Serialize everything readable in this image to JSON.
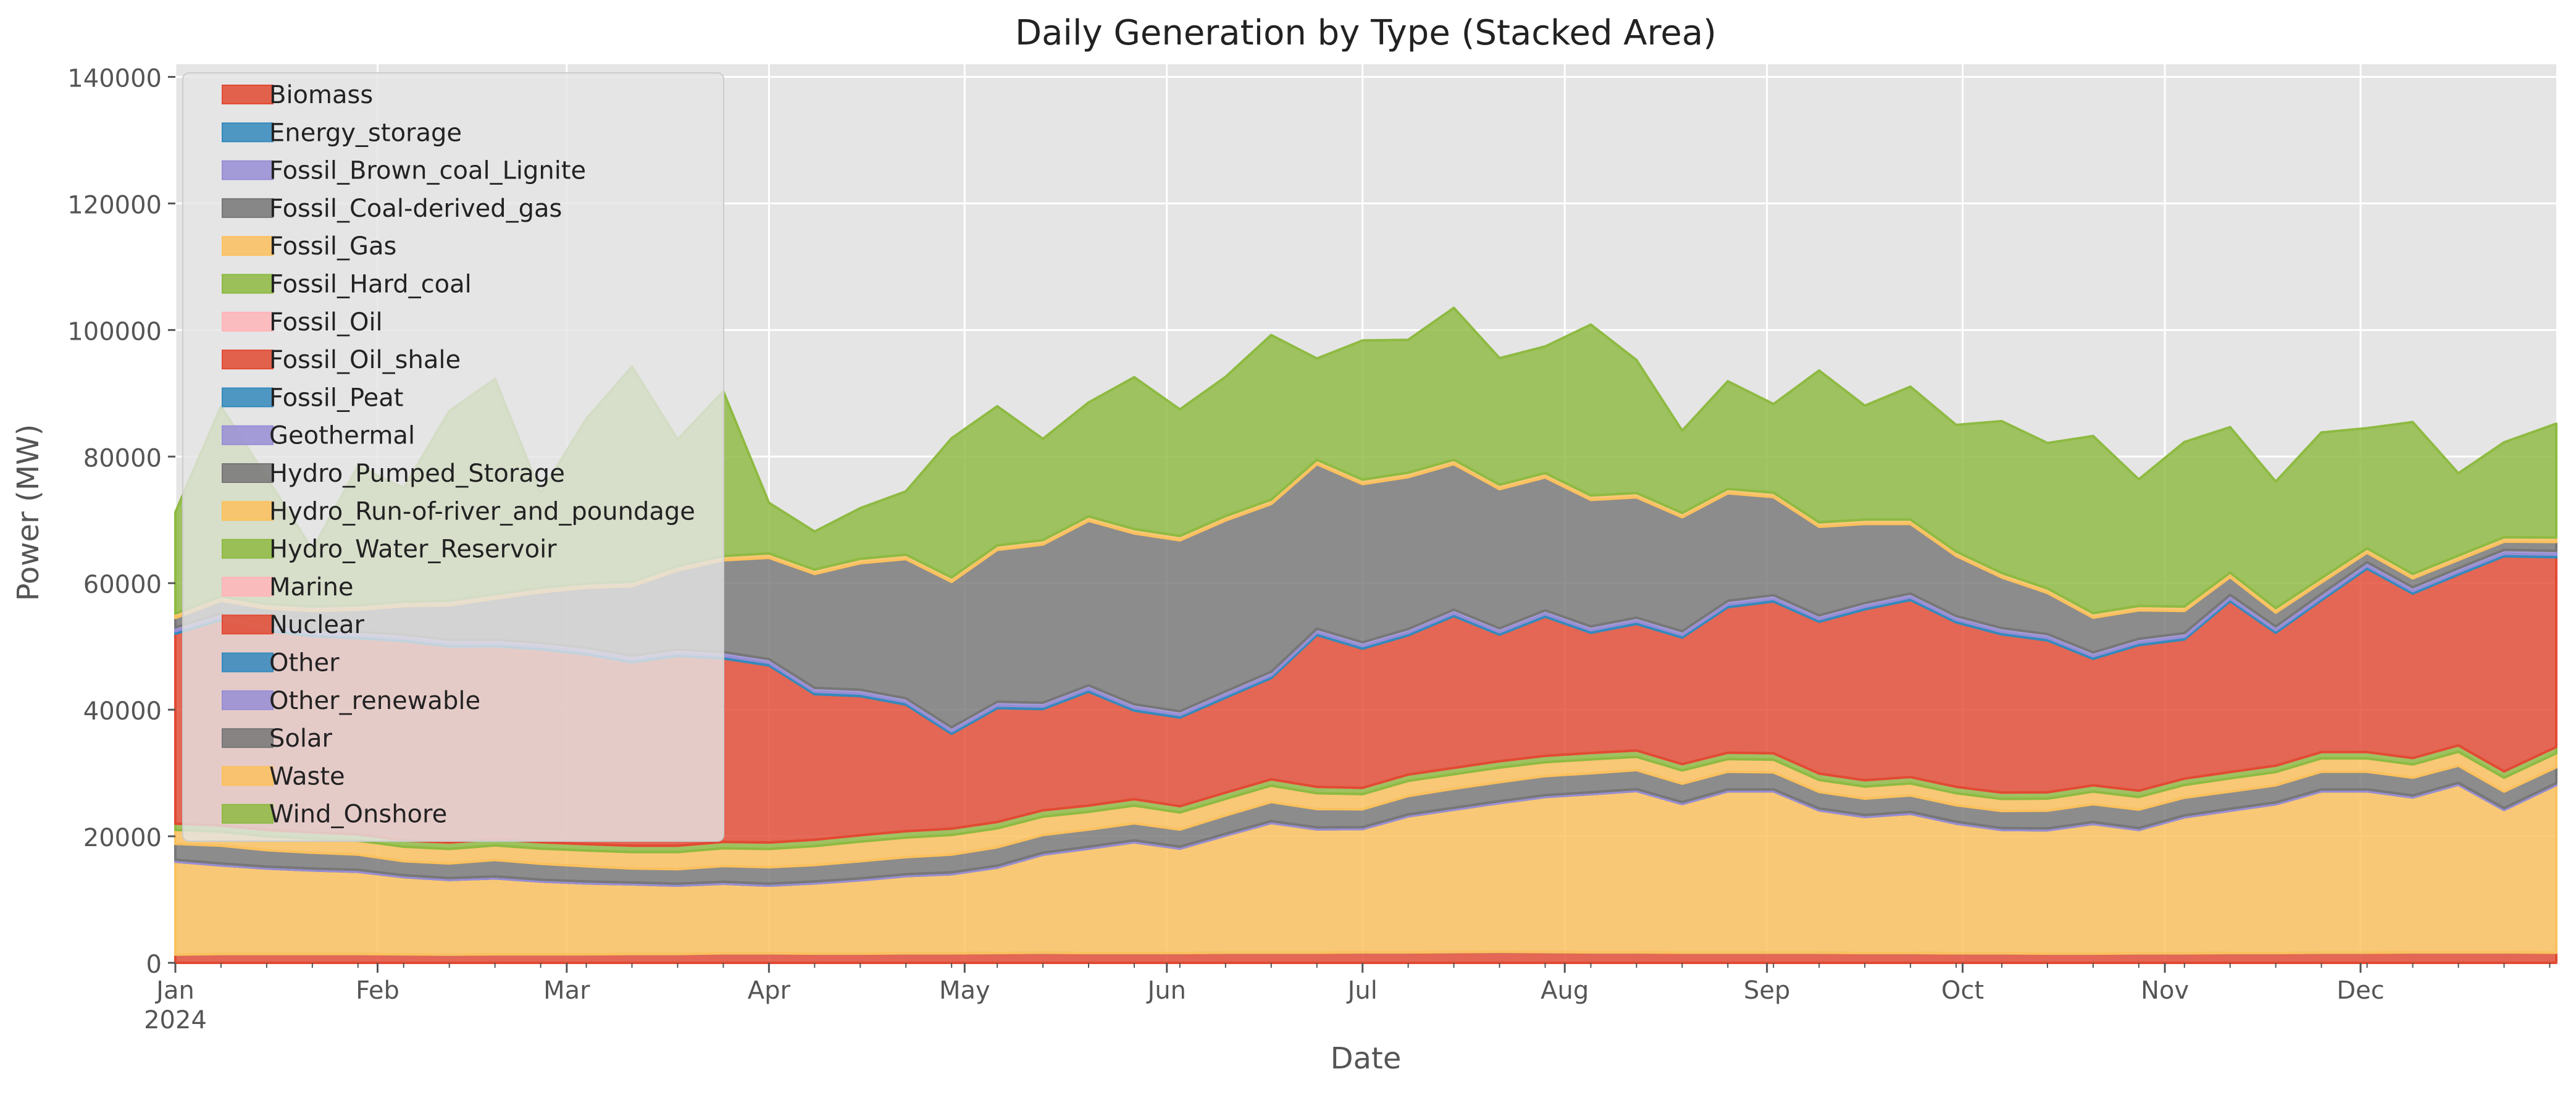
{
  "chart_data": {
    "type": "area",
    "stacked": true,
    "title": "Daily Generation by Type (Stacked Area)",
    "xlabel": "Date",
    "ylabel": "Power (MW)",
    "x_start": "2024-01-01",
    "x_end": "2024-12-31",
    "x_resolution": "week",
    "ylim": [
      0,
      142000
    ],
    "yticks": [
      0,
      20000,
      40000,
      60000,
      80000,
      100000,
      120000,
      140000
    ],
    "ytick_labels": [
      "0",
      "20000",
      "40000",
      "60000",
      "80000",
      "100000",
      "120000",
      "140000"
    ],
    "xtick_labels": [
      "Jan",
      "Feb",
      "Mar",
      "Apr",
      "May",
      "Jun",
      "Jul",
      "Aug",
      "Sep",
      "Oct",
      "Nov",
      "Dec"
    ],
    "xtick_year": "2024",
    "grid": true,
    "legend_position": "upper-left",
    "x": [
      "2024-01-01",
      "2024-01-08",
      "2024-01-15",
      "2024-01-22",
      "2024-01-29",
      "2024-02-05",
      "2024-02-12",
      "2024-02-19",
      "2024-02-26",
      "2024-03-04",
      "2024-03-11",
      "2024-03-18",
      "2024-03-25",
      "2024-04-01",
      "2024-04-08",
      "2024-04-15",
      "2024-04-22",
      "2024-04-29",
      "2024-05-06",
      "2024-05-13",
      "2024-05-20",
      "2024-05-27",
      "2024-06-03",
      "2024-06-10",
      "2024-06-17",
      "2024-06-24",
      "2024-07-01",
      "2024-07-08",
      "2024-07-15",
      "2024-07-22",
      "2024-07-29",
      "2024-08-05",
      "2024-08-12",
      "2024-08-19",
      "2024-08-26",
      "2024-09-02",
      "2024-09-09",
      "2024-09-16",
      "2024-09-23",
      "2024-09-30",
      "2024-10-07",
      "2024-10-14",
      "2024-10-21",
      "2024-10-28",
      "2024-11-04",
      "2024-11-11",
      "2024-11-18",
      "2024-11-25",
      "2024-12-02",
      "2024-12-09",
      "2024-12-16",
      "2024-12-23",
      "2024-12-31"
    ],
    "series": [
      {
        "name": "Biomass",
        "color": "#E24A33",
        "values": [
          1300,
          1400,
          1400,
          1400,
          1400,
          1350,
          1300,
          1350,
          1350,
          1350,
          1400,
          1400,
          1500,
          1500,
          1450,
          1450,
          1500,
          1500,
          1550,
          1600,
          1550,
          1550,
          1550,
          1600,
          1600,
          1600,
          1650,
          1650,
          1700,
          1750,
          1700,
          1650,
          1650,
          1600,
          1600,
          1600,
          1600,
          1550,
          1550,
          1500,
          1500,
          1450,
          1450,
          1500,
          1500,
          1550,
          1550,
          1600,
          1600,
          1650,
          1650,
          1650,
          1600
        ]
      },
      {
        "name": "Energy_storage",
        "color": "#348ABD",
        "values": [
          0,
          0,
          0,
          0,
          0,
          0,
          0,
          0,
          0,
          0,
          0,
          0,
          0,
          0,
          0,
          0,
          0,
          0,
          0,
          0,
          0,
          0,
          0,
          0,
          0,
          0,
          0,
          0,
          0,
          0,
          0,
          0,
          0,
          0,
          0,
          0,
          0,
          0,
          0,
          0,
          0,
          0,
          0,
          0,
          0,
          0,
          0,
          0,
          0,
          0,
          0,
          0,
          0
        ]
      },
      {
        "name": "Fossil_Brown_coal_Lignite",
        "color": "#988ED5",
        "values": [
          0,
          0,
          0,
          0,
          0,
          0,
          0,
          0,
          0,
          0,
          0,
          0,
          0,
          0,
          0,
          0,
          0,
          0,
          0,
          0,
          0,
          0,
          0,
          0,
          0,
          0,
          0,
          0,
          0,
          0,
          0,
          0,
          0,
          0,
          0,
          0,
          0,
          0,
          0,
          0,
          0,
          0,
          0,
          0,
          0,
          0,
          0,
          0,
          0,
          0,
          0,
          0,
          0
        ]
      },
      {
        "name": "Fossil_Coal-derived_gas",
        "color": "#777777",
        "values": [
          0,
          0,
          0,
          0,
          0,
          0,
          0,
          0,
          0,
          0,
          0,
          0,
          0,
          0,
          0,
          0,
          0,
          0,
          0,
          0,
          0,
          0,
          0,
          0,
          0,
          0,
          0,
          0,
          0,
          0,
          0,
          0,
          0,
          0,
          0,
          0,
          0,
          0,
          0,
          0,
          0,
          0,
          0,
          0,
          0,
          0,
          0,
          0,
          0,
          0,
          0,
          0,
          0
        ]
      },
      {
        "name": "Fossil_Gas",
        "color": "#FBC15E",
        "values": [
          14700,
          14000,
          13500,
          13200,
          13000,
          12200,
          11800,
          12000,
          11500,
          11200,
          11000,
          10800,
          11000,
          10700,
          11100,
          11600,
          12200,
          12500,
          13500,
          15500,
          16500,
          17500,
          16500,
          18500,
          20500,
          19500,
          19500,
          21500,
          22500,
          23500,
          24500,
          25000,
          25500,
          23500,
          25500,
          25500,
          22500,
          21500,
          22000,
          20500,
          19500,
          19500,
          20500,
          19500,
          21500,
          22500,
          23500,
          25500,
          25500,
          24500,
          26500,
          22500,
          26500
        ]
      },
      {
        "name": "Fossil_Hard_coal",
        "color": "#8EBA42",
        "values": [
          0,
          0,
          0,
          0,
          0,
          0,
          0,
          0,
          0,
          0,
          0,
          0,
          0,
          0,
          0,
          0,
          0,
          0,
          0,
          0,
          0,
          0,
          0,
          0,
          0,
          0,
          0,
          0,
          0,
          0,
          0,
          0,
          0,
          0,
          0,
          0,
          0,
          0,
          0,
          0,
          0,
          0,
          0,
          0,
          0,
          0,
          0,
          0,
          0,
          0,
          0,
          0,
          0
        ]
      },
      {
        "name": "Fossil_Oil",
        "color": "#FFB5B8",
        "values": [
          0,
          0,
          0,
          0,
          0,
          0,
          0,
          0,
          0,
          0,
          0,
          0,
          0,
          0,
          0,
          0,
          0,
          0,
          0,
          0,
          0,
          0,
          0,
          0,
          0,
          0,
          0,
          0,
          0,
          0,
          0,
          0,
          0,
          0,
          0,
          0,
          0,
          0,
          0,
          0,
          0,
          0,
          0,
          0,
          0,
          0,
          0,
          0,
          0,
          0,
          0,
          0,
          0
        ]
      },
      {
        "name": "Fossil_Oil_shale",
        "color": "#E24A33",
        "values": [
          0,
          0,
          0,
          0,
          0,
          0,
          0,
          0,
          0,
          0,
          0,
          0,
          0,
          0,
          0,
          0,
          0,
          0,
          0,
          0,
          0,
          0,
          0,
          0,
          0,
          0,
          0,
          0,
          0,
          0,
          0,
          0,
          0,
          0,
          0,
          0,
          0,
          0,
          0,
          0,
          0,
          0,
          0,
          0,
          0,
          0,
          0,
          0,
          0,
          0,
          0,
          0,
          0
        ]
      },
      {
        "name": "Fossil_Peat",
        "color": "#348ABD",
        "values": [
          0,
          0,
          0,
          0,
          0,
          0,
          0,
          0,
          0,
          0,
          0,
          0,
          0,
          0,
          0,
          0,
          0,
          0,
          0,
          0,
          0,
          0,
          0,
          0,
          0,
          0,
          0,
          0,
          0,
          0,
          0,
          0,
          0,
          0,
          0,
          0,
          0,
          0,
          0,
          0,
          0,
          0,
          0,
          0,
          0,
          0,
          0,
          0,
          0,
          0,
          0,
          0,
          0
        ]
      },
      {
        "name": "Geothermal",
        "color": "#988ED5",
        "values": [
          300,
          300,
          300,
          300,
          300,
          300,
          300,
          300,
          300,
          300,
          300,
          300,
          300,
          300,
          300,
          300,
          300,
          300,
          300,
          300,
          300,
          300,
          300,
          300,
          300,
          300,
          300,
          300,
          300,
          300,
          300,
          300,
          300,
          300,
          300,
          300,
          300,
          300,
          300,
          300,
          300,
          300,
          300,
          300,
          300,
          300,
          300,
          300,
          300,
          300,
          300,
          300,
          300
        ]
      },
      {
        "name": "Hydro_Pumped_Storage",
        "color": "#777777",
        "values": [
          2500,
          2800,
          2600,
          2500,
          2400,
          2200,
          2300,
          2600,
          2500,
          2400,
          2200,
          2300,
          2500,
          2600,
          2600,
          2700,
          2700,
          2800,
          2900,
          2800,
          2700,
          2700,
          2700,
          2900,
          3000,
          2900,
          2800,
          2900,
          3000,
          3000,
          3000,
          3000,
          3000,
          2900,
          2800,
          2700,
          2600,
          2600,
          2600,
          2600,
          2700,
          2800,
          2800,
          2900,
          2800,
          2700,
          2700,
          2800,
          2800,
          2800,
          2700,
          2600,
          2500
        ]
      },
      {
        "name": "Hydro_Run-of-river_and_poundage",
        "color": "#FBC15E",
        "values": [
          2200,
          2200,
          2200,
          2200,
          2200,
          2300,
          2300,
          2300,
          2400,
          2500,
          2600,
          2700,
          2800,
          2900,
          3000,
          3100,
          3100,
          3100,
          3000,
          2900,
          2800,
          2800,
          2700,
          2600,
          2600,
          2500,
          2400,
          2400,
          2300,
          2300,
          2200,
          2200,
          2100,
          2100,
          2000,
          2000,
          1900,
          1900,
          1900,
          1900,
          1900,
          1900,
          2000,
          2000,
          2000,
          2100,
          2100,
          2100,
          2100,
          2100,
          2200,
          2200,
          2200
        ]
      },
      {
        "name": "Hydro_Water_Reservoir",
        "color": "#8EBA42",
        "values": [
          1000,
          1000,
          1000,
          1000,
          1000,
          1000,
          1000,
          1000,
          1000,
          1000,
          1000,
          1000,
          1000,
          1000,
          1000,
          1000,
          1000,
          1000,
          1000,
          1000,
          1000,
          1000,
          1000,
          1000,
          1000,
          1000,
          1000,
          1000,
          1000,
          1000,
          1000,
          1000,
          1000,
          1000,
          1000,
          1000,
          1000,
          1000,
          1000,
          1000,
          1000,
          1000,
          1000,
          1000,
          1000,
          1000,
          1000,
          1000,
          1000,
          1000,
          1000,
          1000,
          1000
        ]
      },
      {
        "name": "Marine",
        "color": "#FFB5B8",
        "values": [
          0,
          0,
          0,
          0,
          0,
          0,
          0,
          0,
          0,
          0,
          0,
          0,
          0,
          0,
          0,
          0,
          0,
          0,
          0,
          0,
          0,
          0,
          0,
          0,
          0,
          0,
          0,
          0,
          0,
          0,
          0,
          0,
          0,
          0,
          0,
          0,
          0,
          0,
          0,
          0,
          0,
          0,
          0,
          0,
          0,
          0,
          0,
          0,
          0,
          0,
          0,
          0,
          0
        ]
      },
      {
        "name": "Nuclear",
        "color": "#E24A33",
        "values": [
          30000,
          32500,
          31500,
          31000,
          31000,
          31500,
          31000,
          30500,
          30500,
          30000,
          29000,
          30000,
          29000,
          28000,
          23000,
          22000,
          20000,
          15000,
          18000,
          16000,
          18000,
          14000,
          14000,
          15000,
          16000,
          24000,
          22000,
          22000,
          24000,
          20000,
          22000,
          19000,
          20000,
          20000,
          23000,
          24000,
          24000,
          27000,
          28000,
          26000,
          25000,
          24000,
          20000,
          23000,
          22000,
          27000,
          21000,
          24000,
          29000,
          26000,
          27000,
          34000,
          30000
        ]
      },
      {
        "name": "Other",
        "color": "#348ABD",
        "values": [
          400,
          400,
          400,
          400,
          400,
          400,
          400,
          400,
          400,
          400,
          400,
          400,
          400,
          400,
          400,
          400,
          400,
          400,
          400,
          400,
          400,
          400,
          400,
          400,
          400,
          400,
          400,
          400,
          400,
          400,
          400,
          400,
          400,
          400,
          400,
          400,
          400,
          400,
          400,
          400,
          400,
          400,
          400,
          400,
          400,
          400,
          400,
          400,
          400,
          400,
          400,
          400,
          400
        ]
      },
      {
        "name": "Other_renewable",
        "color": "#988ED5",
        "values": [
          600,
          600,
          600,
          600,
          600,
          600,
          600,
          600,
          600,
          600,
          600,
          600,
          600,
          600,
          600,
          600,
          600,
          600,
          600,
          600,
          600,
          600,
          600,
          600,
          600,
          600,
          600,
          600,
          600,
          600,
          600,
          600,
          600,
          600,
          600,
          600,
          600,
          600,
          600,
          600,
          600,
          600,
          600,
          600,
          600,
          600,
          600,
          600,
          600,
          600,
          600,
          600,
          600
        ]
      },
      {
        "name": "Solar",
        "color": "#777777",
        "values": [
          1500,
          2000,
          2500,
          3000,
          3500,
          4500,
          5500,
          6500,
          8000,
          9500,
          11000,
          12500,
          14500,
          16000,
          18000,
          20000,
          22000,
          23000,
          24000,
          25000,
          26000,
          27000,
          27000,
          27000,
          26500,
          26000,
          25000,
          24000,
          23000,
          22000,
          21000,
          20000,
          19000,
          18000,
          17000,
          15500,
          14000,
          12500,
          11000,
          9500,
          8000,
          6500,
          5500,
          4500,
          3500,
          2800,
          2200,
          1800,
          1500,
          1400,
          1300,
          1300,
          1400
        ]
      },
      {
        "name": "Waste",
        "color": "#FBC15E",
        "values": [
          700,
          700,
          700,
          700,
          700,
          700,
          700,
          700,
          700,
          700,
          700,
          700,
          700,
          700,
          700,
          700,
          700,
          700,
          700,
          700,
          700,
          700,
          700,
          700,
          700,
          700,
          700,
          700,
          700,
          700,
          700,
          700,
          700,
          700,
          700,
          700,
          700,
          700,
          700,
          700,
          700,
          700,
          700,
          700,
          700,
          700,
          700,
          700,
          700,
          700,
          700,
          700,
          700
        ]
      },
      {
        "name": "Wind_Onshore",
        "color": "#8EBA42",
        "values": [
          16000,
          30000,
          20000,
          9000,
          22000,
          18000,
          30000,
          34000,
          15000,
          26000,
          34000,
          20000,
          26000,
          8000,
          6000,
          8000,
          10000,
          22000,
          22000,
          16000,
          18000,
          24000,
          20000,
          22000,
          26000,
          16000,
          22000,
          21000,
          24000,
          20000,
          20000,
          27000,
          21000,
          13000,
          17000,
          14000,
          24000,
          18000,
          21000,
          20000,
          24000,
          23000,
          28000,
          20000,
          26000,
          23000,
          20000,
          23000,
          19000,
          24000,
          13000,
          15000,
          18000
        ]
      }
    ]
  }
}
